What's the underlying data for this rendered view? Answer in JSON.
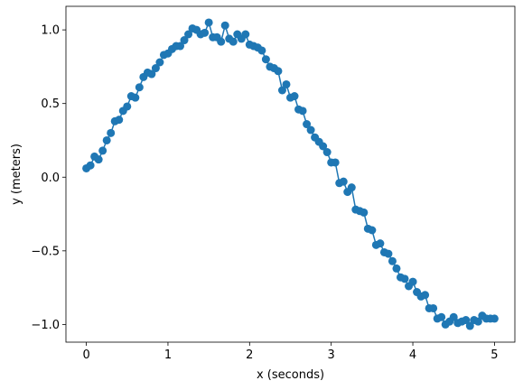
{
  "chart_data": {
    "type": "line",
    "title": "",
    "xlabel": "x (seconds)",
    "ylabel": "y (meters)",
    "xlim": [
      -0.25,
      5.25
    ],
    "ylim": [
      -1.12,
      1.16
    ],
    "xticks": [
      0,
      1,
      2,
      3,
      4,
      5
    ],
    "xtick_labels": [
      "0",
      "1",
      "2",
      "3",
      "4",
      "5"
    ],
    "yticks": [
      1.0,
      0.5,
      0.0,
      -0.5,
      -1.0
    ],
    "ytick_labels": [
      "1.0",
      "0.5",
      "0.0",
      "−0.5",
      "−1.0"
    ],
    "grid": false,
    "legend": "none",
    "color": "#1f77b4",
    "marker": "circle",
    "series": [
      {
        "x": [
          0.0,
          0.05,
          0.1,
          0.15,
          0.2,
          0.25,
          0.3,
          0.35,
          0.4,
          0.45,
          0.5,
          0.55,
          0.6,
          0.65,
          0.7,
          0.75,
          0.8,
          0.85,
          0.9,
          0.95,
          1.0,
          1.05,
          1.1,
          1.15,
          1.2,
          1.25,
          1.3,
          1.35,
          1.4,
          1.45,
          1.5,
          1.55,
          1.6,
          1.65,
          1.7,
          1.75,
          1.8,
          1.85,
          1.9,
          1.95,
          2.0,
          2.05,
          2.1,
          2.15,
          2.2,
          2.25,
          2.3,
          2.35,
          2.4,
          2.45,
          2.5,
          2.55,
          2.6,
          2.65,
          2.7,
          2.75,
          2.8,
          2.85,
          2.9,
          2.95,
          3.0,
          3.05,
          3.1,
          3.15,
          3.2,
          3.25,
          3.3,
          3.35,
          3.4,
          3.45,
          3.5,
          3.55,
          3.6,
          3.65,
          3.7,
          3.75,
          3.8,
          3.85,
          3.9,
          3.95,
          4.0,
          4.05,
          4.1,
          4.15,
          4.2,
          4.25,
          4.3,
          4.35,
          4.4,
          4.45,
          4.5,
          4.55,
          4.6,
          4.65,
          4.7,
          4.75,
          4.8,
          4.85,
          4.9,
          4.95,
          5.0
        ],
        "y": [
          0.06,
          0.08,
          0.14,
          0.12,
          0.18,
          0.25,
          0.3,
          0.38,
          0.39,
          0.45,
          0.48,
          0.55,
          0.54,
          0.61,
          0.68,
          0.71,
          0.7,
          0.74,
          0.78,
          0.83,
          0.84,
          0.87,
          0.89,
          0.89,
          0.93,
          0.97,
          1.01,
          1.0,
          0.97,
          0.98,
          1.05,
          0.95,
          0.95,
          0.92,
          1.03,
          0.94,
          0.92,
          0.97,
          0.94,
          0.97,
          0.9,
          0.89,
          0.88,
          0.86,
          0.8,
          0.75,
          0.74,
          0.72,
          0.59,
          0.63,
          0.54,
          0.55,
          0.46,
          0.45,
          0.36,
          0.32,
          0.27,
          0.24,
          0.21,
          0.17,
          0.1,
          0.1,
          -0.04,
          -0.03,
          -0.1,
          -0.07,
          -0.22,
          -0.23,
          -0.24,
          -0.35,
          -0.36,
          -0.46,
          -0.45,
          -0.51,
          -0.52,
          -0.57,
          -0.62,
          -0.68,
          -0.69,
          -0.74,
          -0.71,
          -0.78,
          -0.81,
          -0.8,
          -0.89,
          -0.89,
          -0.96,
          -0.95,
          -1.0,
          -0.98,
          -0.95,
          -0.99,
          -0.98,
          -0.97,
          -1.01,
          -0.97,
          -0.98,
          -0.94,
          -0.96,
          -0.96,
          -0.96
        ]
      }
    ]
  }
}
